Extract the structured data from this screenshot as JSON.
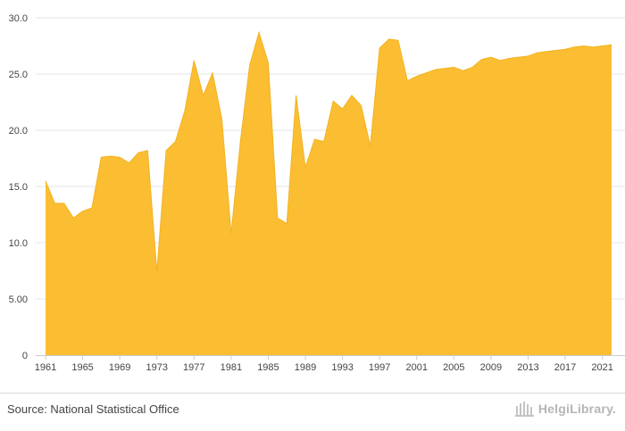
{
  "chart_data": {
    "type": "area",
    "title": "",
    "xlabel": "",
    "ylabel": "",
    "color": "#FBBE33",
    "ylim": [
      0,
      30
    ],
    "xlim": [
      1961,
      2022
    ],
    "y_ticks": [
      0,
      5,
      10,
      15,
      20,
      25,
      30
    ],
    "y_tick_labels": [
      "0",
      "5.00",
      "10.0",
      "15.0",
      "20.0",
      "25.0",
      "30.0"
    ],
    "x_tick_labels": [
      "1961",
      "1965",
      "1969",
      "1973",
      "1977",
      "1981",
      "1985",
      "1989",
      "1993",
      "1997",
      "2001",
      "2005",
      "2009",
      "2013",
      "2017",
      "2021"
    ],
    "grid": true,
    "x": [
      1961,
      1962,
      1963,
      1964,
      1965,
      1966,
      1967,
      1968,
      1969,
      1970,
      1971,
      1972,
      1973,
      1974,
      1975,
      1976,
      1977,
      1978,
      1979,
      1980,
      1981,
      1982,
      1983,
      1984,
      1985,
      1986,
      1987,
      1988,
      1989,
      1990,
      1991,
      1992,
      1993,
      1994,
      1995,
      1996,
      1997,
      1998,
      1999,
      2000,
      2001,
      2002,
      2003,
      2004,
      2005,
      2006,
      2007,
      2008,
      2009,
      2010,
      2011,
      2012,
      2013,
      2014,
      2015,
      2016,
      2017,
      2018,
      2019,
      2020,
      2021,
      2022
    ],
    "values": [
      15.5,
      13.5,
      13.5,
      12.2,
      12.8,
      13.1,
      17.6,
      17.7,
      17.6,
      17.1,
      18.0,
      18.2,
      7.4,
      18.2,
      19.0,
      21.7,
      26.2,
      23.1,
      25.1,
      21.0,
      10.8,
      19.0,
      25.8,
      28.7,
      26.0,
      12.2,
      11.7,
      23.1,
      16.7,
      19.2,
      19.0,
      22.6,
      21.9,
      23.1,
      22.2,
      18.6,
      27.3,
      28.1,
      28.0,
      24.4,
      24.8,
      25.1,
      25.4,
      25.5,
      25.6,
      25.3,
      25.6,
      26.3,
      26.5,
      26.2,
      26.4,
      26.5,
      26.6,
      26.9,
      27.0,
      27.1,
      27.2,
      27.4,
      27.5,
      27.4,
      27.5,
      27.6
    ]
  },
  "footer": {
    "source": "Source: National Statistical Office",
    "logo_text": "HelgiLibrary."
  }
}
